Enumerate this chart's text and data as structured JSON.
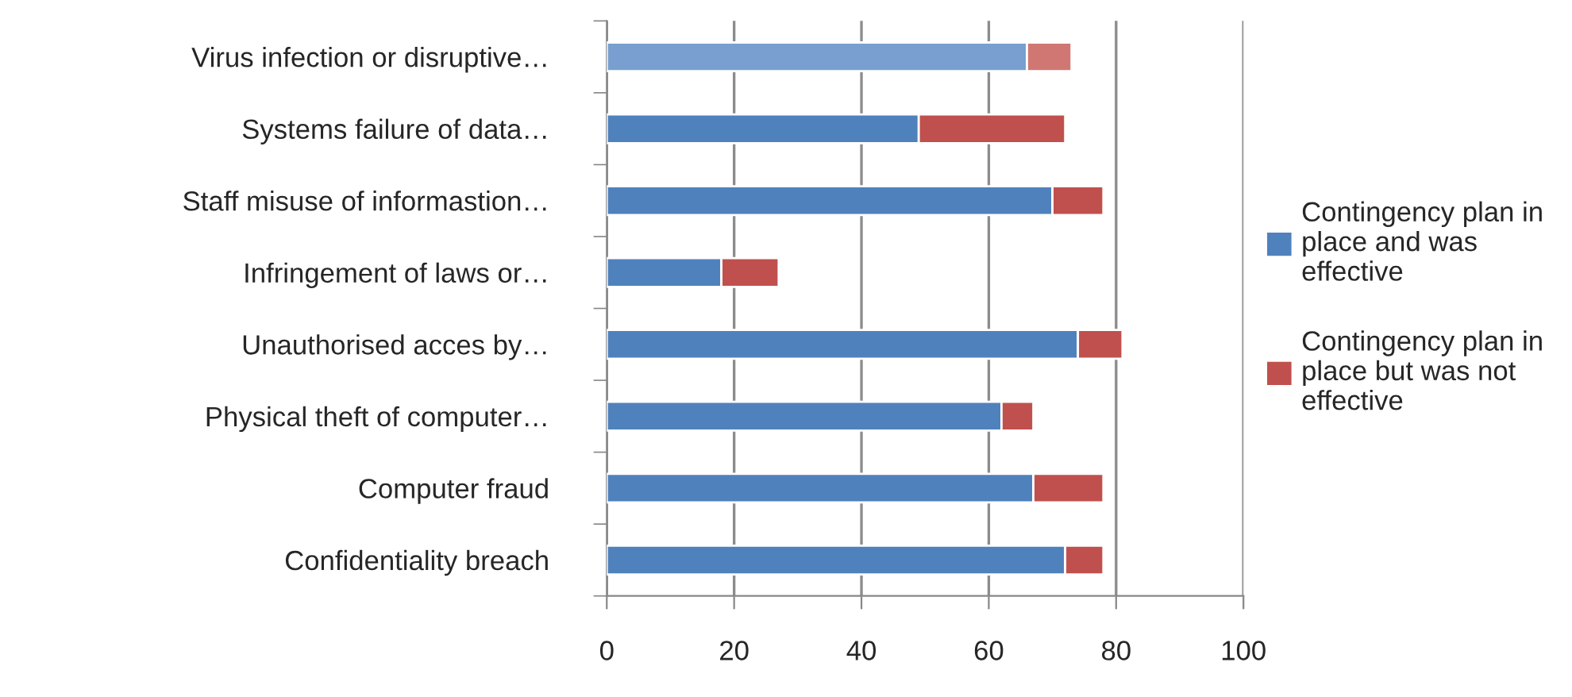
{
  "chart_data": {
    "type": "bar",
    "orientation": "horizontal",
    "stacked": true,
    "categories": [
      "Virus infection or disruptive…",
      "Systems failure of data…",
      "Staff misuse of informastion…",
      "Infringement of laws or…",
      "Unauthorised acces by…",
      "Physical theft of computer…",
      "Computer fraud",
      "Confidentiality breach"
    ],
    "series": [
      {
        "name": "Contingency plan in place and was effective",
        "color": "#4f81bd",
        "colors": [
          "#789fd0",
          "#4f81bd",
          "#4f81bd",
          "#4f81bd",
          "#4f81bd",
          "#4f81bd",
          "#4f81bd",
          "#4f81bd"
        ],
        "values": [
          66,
          49,
          70,
          18,
          74,
          62,
          67,
          72
        ]
      },
      {
        "name": "Contingency plan in place but was not effective",
        "color": "#c0504d",
        "colors": [
          "#d07774",
          "#c0504d",
          "#c0504d",
          "#c0504d",
          "#c0504d",
          "#c0504d",
          "#c0504d",
          "#c0504d"
        ],
        "values": [
          7,
          23,
          8,
          9,
          7,
          5,
          11,
          6
        ]
      }
    ],
    "xlim": [
      0,
      100
    ],
    "xticks": [
      0,
      20,
      40,
      60,
      80,
      100
    ],
    "grid": "x",
    "legend": "right"
  }
}
